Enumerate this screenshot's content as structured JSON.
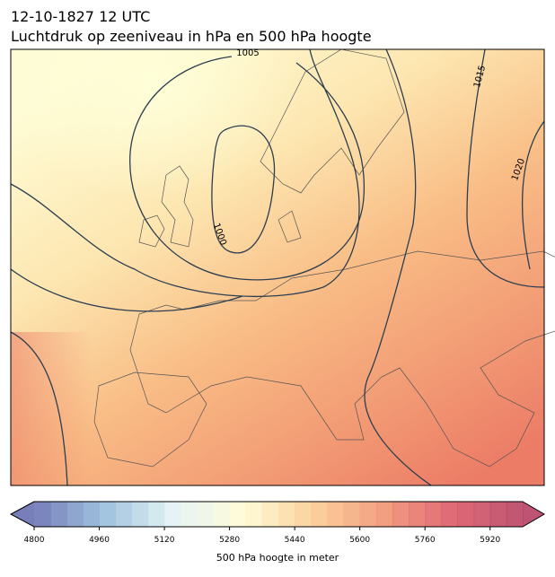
{
  "header": {
    "date": "12-10-1827 12 UTC",
    "title": "Luchtdruk op zeeniveau in hPa en 500 hPa hoogte"
  },
  "map": {
    "isobar_labels": [
      "1005",
      "1015",
      "1020",
      "1000"
    ]
  },
  "colorbar": {
    "label": "500 hPa hoogte in meter",
    "range": [
      4800,
      6000
    ],
    "step": 40,
    "ticks": [
      4800,
      4960,
      5120,
      5280,
      5440,
      5600,
      5760,
      5920
    ],
    "colors": [
      "#5f67ad",
      "#8fb8d8",
      "#e2f2f4",
      "#fffbd0",
      "#fbc98c",
      "#f08e6a",
      "#d94f5e",
      "#b3365a"
    ]
  }
}
